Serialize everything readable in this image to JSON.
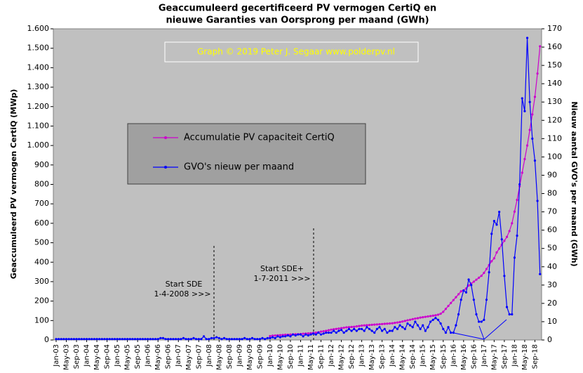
{
  "chart_data": {
    "type": "line",
    "title": "Geaccumuleerd gecertificeerd PV vermogen CertiQ en",
    "subtitle": "nieuwe Garanties van Oorsprong per maand (GWh)",
    "watermark": "Graph © 2019 Peter J. Segaar www.polderpv.nl",
    "ylabel": "Geaccumuleerd PV vermogen CertiQ (MWp)",
    "y2label": "Nieuw aantal GVO's per maand (GWh)",
    "annotations": [
      "Start SDE",
      "1-4-2008 >>>",
      "Start SDE+",
      "1-7-2011 >>>"
    ],
    "categories": [
      "Jan-03",
      null,
      null,
      null,
      "May-03",
      null,
      null,
      null,
      "Sep-03",
      null,
      null,
      null,
      "Jan-04",
      null,
      null,
      null,
      "May-04",
      null,
      null,
      null,
      "Sep-04",
      null,
      null,
      null,
      "Jan-05",
      null,
      null,
      null,
      "May-05",
      null,
      null,
      null,
      "Sep-05",
      null,
      null,
      null,
      "Jan-06",
      null,
      null,
      null,
      "May-06",
      null,
      null,
      null,
      "Sep-06",
      null,
      null,
      null,
      "Jan-07",
      null,
      null,
      null,
      "May-07",
      null,
      null,
      null,
      "Sep-07",
      null,
      null,
      null,
      "Jan-08",
      null,
      null,
      null,
      "May-08",
      null,
      null,
      null,
      "Sep-08",
      null,
      null,
      null,
      "Jan-09",
      null,
      null,
      null,
      "May-09",
      null,
      null,
      null,
      "Sep-09",
      null,
      null,
      null,
      "Jan-10",
      null,
      null,
      null,
      "May-10",
      null,
      null,
      null,
      "Sep-10",
      null,
      null,
      null,
      "Jan-11",
      null,
      null,
      null,
      "May-11",
      null,
      null,
      null,
      "Sep-11",
      null,
      null,
      null,
      "Jan-12",
      null,
      null,
      null,
      "May-12",
      null,
      null,
      null,
      "Sep-12",
      null,
      null,
      null,
      "Jan-13",
      null,
      null,
      null,
      "May-13",
      null,
      null,
      null,
      "Sep-13",
      null,
      null,
      null,
      "Jan-14",
      null,
      null,
      null,
      "May-14",
      null,
      null,
      null,
      "Sep-14",
      null,
      null,
      null,
      "Jan-15",
      null,
      null,
      null,
      "May-15",
      null,
      null,
      null,
      "Sep-15",
      null,
      null,
      null,
      "Jan-16",
      null,
      null,
      null,
      "May-16",
      null,
      null,
      null,
      "Sep-16",
      null,
      null,
      null,
      "Jan-17",
      null,
      null,
      null,
      "May-17",
      null,
      null,
      null,
      "Sep-17",
      null,
      null,
      null,
      "Jan-18",
      null,
      null,
      null,
      "May-18",
      null,
      null,
      null,
      "Sep-18",
      null,
      null
    ],
    "series": [
      {
        "name": "Accumulatie PV capaciteit CertiQ",
        "color": "#cc00cc",
        "axis": "y",
        "values": [
          null,
          null,
          null,
          null,
          null,
          null,
          null,
          null,
          null,
          null,
          null,
          null,
          null,
          null,
          null,
          null,
          null,
          null,
          null,
          null,
          null,
          null,
          null,
          null,
          null,
          null,
          null,
          null,
          null,
          null,
          null,
          null,
          null,
          null,
          null,
          null,
          null,
          null,
          null,
          null,
          null,
          null,
          null,
          null,
          null,
          null,
          null,
          null,
          null,
          null,
          null,
          null,
          null,
          null,
          null,
          null,
          null,
          null,
          null,
          null,
          null,
          null,
          null,
          null,
          null,
          null,
          null,
          null,
          null,
          null,
          null,
          null,
          null,
          null,
          null,
          null,
          null,
          null,
          null,
          null,
          null,
          null,
          null,
          null,
          20,
          22,
          23,
          24,
          25,
          26,
          27,
          27,
          28,
          29,
          30,
          30,
          31,
          32,
          33,
          34,
          35,
          36,
          38,
          40,
          43,
          45,
          47,
          50,
          53,
          55,
          57,
          59,
          61,
          63,
          65,
          66,
          67,
          68,
          70,
          72,
          74,
          75,
          76,
          77,
          78,
          79,
          80,
          81,
          82,
          83,
          84,
          85,
          86,
          88,
          90,
          92,
          95,
          98,
          101,
          104,
          107,
          110,
          112,
          115,
          117,
          119,
          121,
          123,
          125,
          127,
          130,
          135,
          145,
          160,
          175,
          190,
          205,
          220,
          235,
          250,
          255,
          265,
          280,
          290,
          300,
          310,
          320,
          330,
          345,
          365,
          385,
          405,
          420,
          450,
          470,
          490,
          510,
          530,
          560,
          600,
          660,
          720,
          790,
          860,
          930,
          1000,
          1080,
          1160,
          1250,
          1370,
          1510
        ]
      },
      {
        "name": "GVO's nieuw per maand",
        "color": "#0000ff",
        "axis": "y2",
        "values": [
          0.5,
          0.5,
          0.5,
          0.5,
          0.5,
          0.5,
          0.5,
          0.5,
          0.5,
          0.5,
          0.5,
          0.5,
          0.5,
          0.5,
          0.5,
          0.5,
          0.5,
          0.5,
          0.5,
          0.5,
          0.5,
          0.5,
          0.5,
          0.5,
          0.5,
          0.5,
          0.5,
          0.5,
          0.5,
          0.5,
          0.5,
          0.5,
          0.5,
          0.5,
          0.5,
          0.5,
          0.5,
          0.5,
          0.5,
          0.5,
          0.5,
          1,
          1,
          0.5,
          0.5,
          0.5,
          0.5,
          0.5,
          0.5,
          0.5,
          1,
          0.5,
          0.5,
          0.5,
          1,
          0.5,
          0.5,
          0.5,
          2,
          0.5,
          0.5,
          1,
          1,
          1.5,
          1,
          0.5,
          1,
          0.5,
          0.5,
          0.5,
          0.5,
          0.5,
          0.5,
          0.5,
          1,
          0.5,
          0.5,
          1,
          0.5,
          0.5,
          0.5,
          1,
          0.5,
          1,
          1,
          1.5,
          1,
          2,
          1.5,
          2,
          2,
          2.5,
          2,
          3,
          2.5,
          3,
          3,
          2,
          3,
          2.5,
          3,
          3.5,
          3,
          4,
          3,
          3.5,
          4,
          4,
          4,
          5,
          4,
          5,
          5.5,
          4,
          5,
          6,
          5,
          6,
          5,
          6,
          6,
          5,
          7,
          6,
          5,
          4,
          6,
          7,
          5,
          6,
          4,
          5,
          5,
          7,
          6,
          8,
          7,
          6,
          9,
          8,
          7,
          10,
          8,
          6,
          8,
          5,
          7,
          10,
          11,
          12,
          11,
          9,
          6,
          4,
          7,
          4,
          4,
          8,
          14,
          22,
          27,
          26,
          33,
          30,
          22,
          14,
          10,
          10,
          11,
          22,
          37,
          58,
          65,
          63,
          70,
          55,
          35,
          18,
          14,
          14,
          45,
          57,
          85,
          132,
          125,
          165,
          130,
          110,
          98,
          76,
          36
        ]
      }
    ],
    "ylim": [
      0,
      1600
    ],
    "yticks": [
      0,
      100,
      200,
      300,
      400,
      500,
      600,
      700,
      800,
      900,
      {
        "value": 1000,
        "label": "1.000"
      },
      {
        "value": 1100,
        "label": "1.100"
      },
      {
        "value": 1200,
        "label": "1.200"
      },
      {
        "value": 1300,
        "label": "1.300"
      },
      {
        "value": 1400,
        "label": "1.400"
      },
      {
        "value": 1500,
        "label": "1.500"
      },
      {
        "value": 1600,
        "label": "1.600"
      }
    ],
    "y2lim": [
      0,
      170
    ],
    "y2ticks": [
      0,
      10,
      20,
      30,
      40,
      50,
      60,
      70,
      80,
      90,
      100,
      110,
      120,
      130,
      140,
      150,
      160,
      170
    ],
    "grid": false
  }
}
